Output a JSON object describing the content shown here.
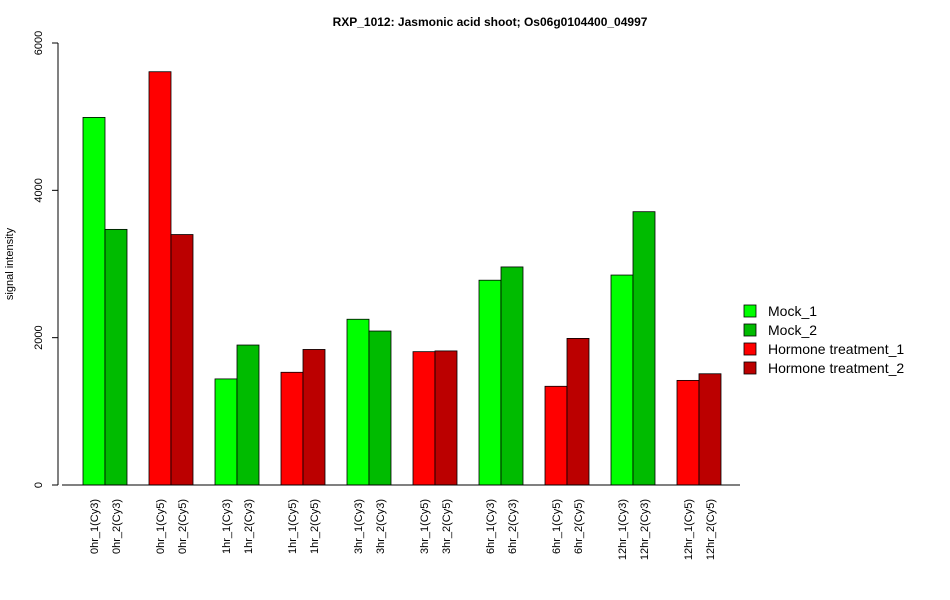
{
  "chart_data": {
    "type": "bar",
    "title": "RXP_1012: Jasmonic acid shoot; Os06g0104400_04997",
    "xlabel": "",
    "ylabel": "signal intensity",
    "ylim": [
      0,
      6000
    ],
    "yticks": [
      "0",
      "2000",
      "4000",
      "6000"
    ],
    "grid": false,
    "legend_position": "right",
    "legend": [
      {
        "name": "Mock_1",
        "color": "#00ff00"
      },
      {
        "name": "Mock_2",
        "color": "#00bb00"
      },
      {
        "name": "Hormone treatment_1",
        "color": "#ff0000"
      },
      {
        "name": "Hormone treatment_2",
        "color": "#bb0000"
      }
    ],
    "bars": [
      {
        "label": "0hr_1(Cy3)",
        "value": 4990,
        "color": "#00ff00"
      },
      {
        "label": "0hr_2(Cy3)",
        "value": 3470,
        "color": "#00bb00"
      },
      {
        "label": "0hr_1(Cy5)",
        "value": 5610,
        "color": "#ff0000"
      },
      {
        "label": "0hr_2(Cy5)",
        "value": 3400,
        "color": "#bb0000"
      },
      {
        "label": "1hr_1(Cy3)",
        "value": 1440,
        "color": "#00ff00"
      },
      {
        "label": "1hr_2(Cy3)",
        "value": 1900,
        "color": "#00bb00"
      },
      {
        "label": "1hr_1(Cy5)",
        "value": 1530,
        "color": "#ff0000"
      },
      {
        "label": "1hr_2(Cy5)",
        "value": 1840,
        "color": "#bb0000"
      },
      {
        "label": "3hr_1(Cy3)",
        "value": 2250,
        "color": "#00ff00"
      },
      {
        "label": "3hr_2(Cy3)",
        "value": 2090,
        "color": "#00bb00"
      },
      {
        "label": "3hr_1(Cy5)",
        "value": 1810,
        "color": "#ff0000"
      },
      {
        "label": "3hr_2(Cy5)",
        "value": 1820,
        "color": "#bb0000"
      },
      {
        "label": "6hr_1(Cy3)",
        "value": 2780,
        "color": "#00ff00"
      },
      {
        "label": "6hr_2(Cy3)",
        "value": 2960,
        "color": "#00bb00"
      },
      {
        "label": "6hr_1(Cy5)",
        "value": 1340,
        "color": "#ff0000"
      },
      {
        "label": "6hr_2(Cy5)",
        "value": 1990,
        "color": "#bb0000"
      },
      {
        "label": "12hr_1(Cy3)",
        "value": 2850,
        "color": "#00ff00"
      },
      {
        "label": "12hr_2(Cy3)",
        "value": 3710,
        "color": "#00bb00"
      },
      {
        "label": "12hr_1(Cy5)",
        "value": 1420,
        "color": "#ff0000"
      },
      {
        "label": "12hr_2(Cy5)",
        "value": 1510,
        "color": "#bb0000"
      }
    ]
  }
}
